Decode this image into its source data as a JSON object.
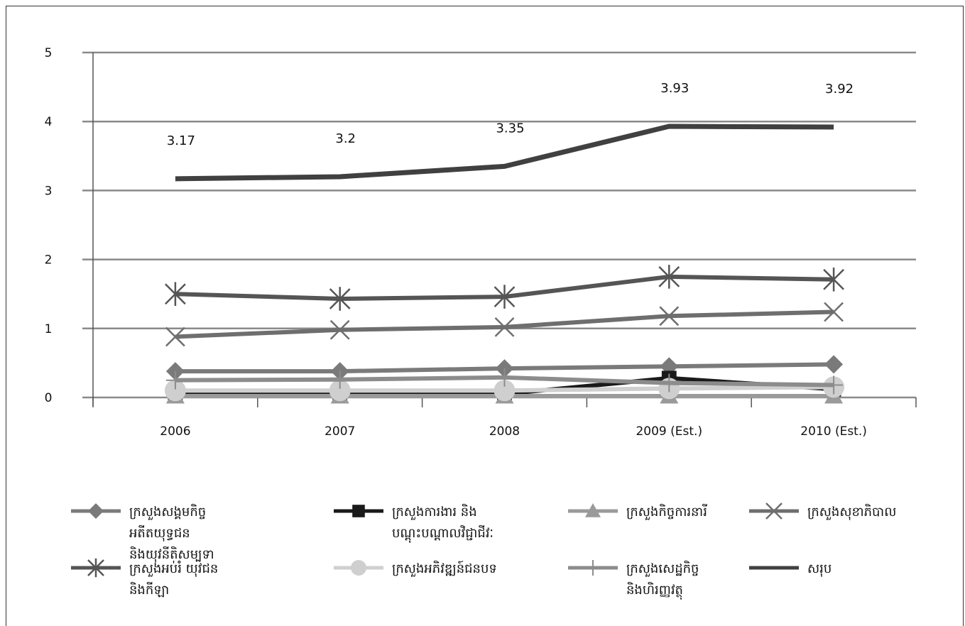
{
  "chart_data": {
    "type": "line",
    "title": "",
    "xlabel": "",
    "ylabel": "",
    "ylim": [
      0,
      5
    ],
    "yticks": [
      "0",
      "1",
      "2",
      "3",
      "4",
      "5"
    ],
    "categories": [
      "2006",
      "2007",
      "2008",
      "2009 (Est.)",
      "2010 (Est.)"
    ],
    "grid": true,
    "legend_position": "bottom",
    "series": [
      {
        "name": "ក្រសួងសង្គមកិច្ច អតីតយុទ្ធជន និងយុវនីតិសម្បទា",
        "values": [
          0.38,
          0.38,
          0.42,
          0.45,
          0.48
        ],
        "color": "#7a7a7a",
        "marker": "diamond"
      },
      {
        "name": "ក្រសួងការងារ និង បណ្តុះបណ្តាលវិជ្ជាជីវៈ",
        "values": [
          0.05,
          0.05,
          0.05,
          0.28,
          0.12
        ],
        "color": "#1a1a1a",
        "marker": "square"
      },
      {
        "name": "ក្រសួងកិច្ចការនារី",
        "values": [
          0.02,
          0.02,
          0.02,
          0.02,
          0.02
        ],
        "color": "#9a9a9a",
        "marker": "triangle"
      },
      {
        "name": "ក្រសួងសុខាភិបាល",
        "values": [
          0.88,
          0.98,
          1.02,
          1.18,
          1.24
        ],
        "color": "#6e6e6e",
        "marker": "x"
      },
      {
        "name": "ក្រសួងអប់រំ យុវជន និងកីឡា",
        "values": [
          1.5,
          1.43,
          1.46,
          1.75,
          1.71
        ],
        "color": "#555555",
        "marker": "star"
      },
      {
        "name": "ក្រសួងអភិវឌ្ឍន៍ជនបទ",
        "values": [
          0.1,
          0.1,
          0.1,
          0.13,
          0.15
        ],
        "color": "#cfcfcf",
        "marker": "circle"
      },
      {
        "name": "ក្រសួងសេដ្ឋកិច្ច និងហិរញ្ញវត្ថុ",
        "values": [
          0.25,
          0.26,
          0.29,
          0.21,
          0.18
        ],
        "color": "#8c8c8c",
        "marker": "plus"
      },
      {
        "name": "សរុប",
        "values": [
          3.17,
          3.2,
          3.35,
          3.93,
          3.92
        ],
        "color": "#404040",
        "marker": "none"
      }
    ],
    "data_labels": {
      "series": "សរុប",
      "labels": [
        "3.17",
        "3.2",
        "3.35",
        "3.93",
        "3.92"
      ]
    }
  }
}
